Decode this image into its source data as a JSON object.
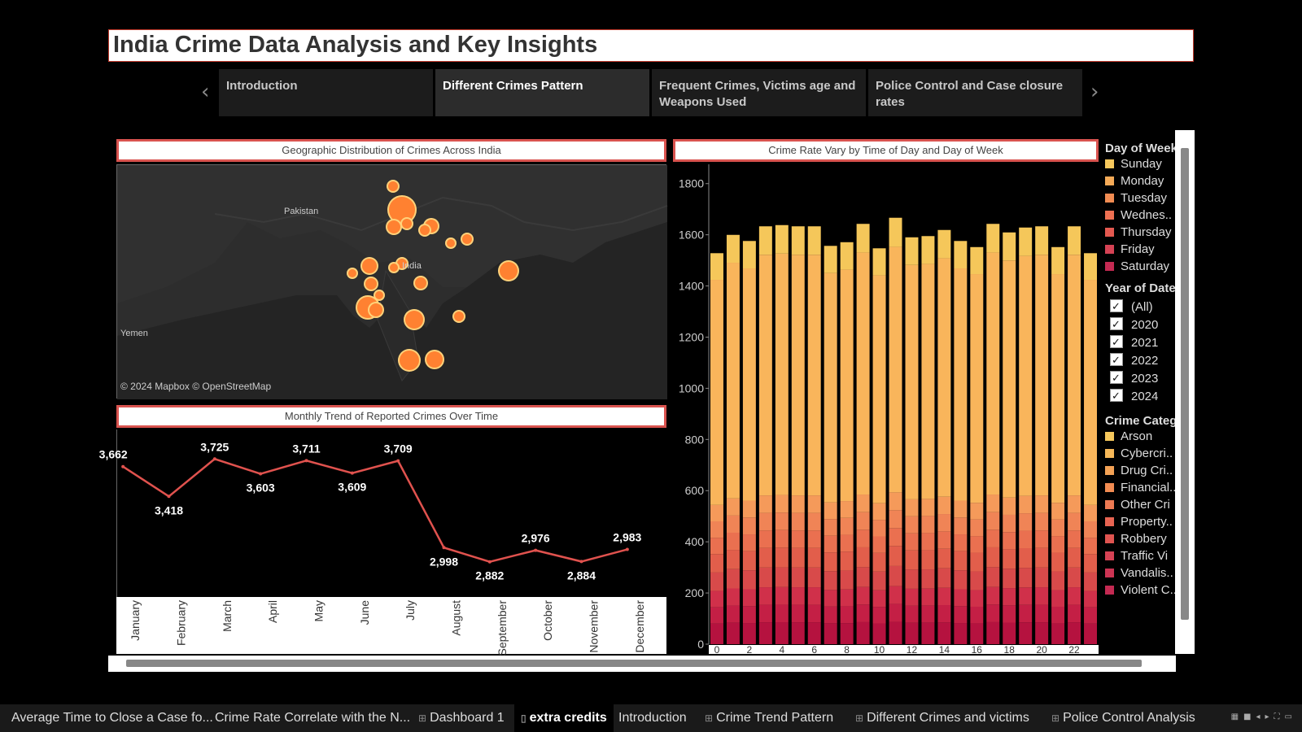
{
  "dashboard_title": "India Crime Data Analysis and Key Insights",
  "story_points": [
    {
      "label": "Introduction"
    },
    {
      "label": "Different Crimes Pattern",
      "active": true
    },
    {
      "label": "Frequent Crimes, Victims age and Weapons Used"
    },
    {
      "label": "Police Control and Case closure rates"
    }
  ],
  "map": {
    "title": "Geographic Distribution of Crimes Across India",
    "labels": {
      "pakistan": "Pakistan",
      "india": "India",
      "yemen": "Yemen"
    },
    "attribution": "© 2024 Mapbox © OpenStreetMap",
    "bubble_color": "#ff7a2a"
  },
  "monthly": {
    "title": "Monthly Trend of Reported Crimes Over Time",
    "line_color": "#e0524e",
    "chart_data": {
      "type": "line",
      "categories": [
        "January",
        "February",
        "March",
        "April",
        "May",
        "June",
        "July",
        "August",
        "September",
        "October",
        "November",
        "December"
      ],
      "values": [
        3662,
        3418,
        3725,
        3603,
        3711,
        3609,
        3709,
        2998,
        2882,
        2976,
        2884,
        2983
      ],
      "labels": [
        "3,662",
        "3,418",
        "3,725",
        "3,603",
        "3,711",
        "3,609",
        "3,709",
        "2,998",
        "2,882",
        "2,976",
        "2,884",
        "2,983"
      ]
    }
  },
  "hourly": {
    "title": "Crime Rate Vary by Time of Day and Day of Week",
    "chart_data": {
      "type": "bar",
      "stacked": true,
      "yticks": [
        "0",
        "200",
        "400",
        "600",
        "800",
        "1000",
        "1200",
        "1400",
        "1600",
        "1800"
      ],
      "ylim": [
        0,
        1850
      ],
      "hours": [
        0,
        1,
        2,
        3,
        4,
        5,
        6,
        7,
        8,
        9,
        10,
        11,
        12,
        13,
        14,
        15,
        16,
        17,
        18,
        19,
        20,
        21,
        22,
        23
      ],
      "x_tick_labels": [
        "0",
        "2",
        "4",
        "6",
        "8",
        "10",
        "12",
        "14",
        "16",
        "18",
        "20",
        "22"
      ],
      "totals": [
        1600,
        1675,
        1650,
        1710,
        1715,
        1710,
        1710,
        1630,
        1645,
        1720,
        1620,
        1745,
        1665,
        1670,
        1695,
        1650,
        1625,
        1720,
        1685,
        1705,
        1710,
        1625,
        1710,
        1600
      ],
      "segment_colors": [
        "#b5123f",
        "#c41f45",
        "#d0304a",
        "#d84a4a",
        "#e25e4b",
        "#ea7050",
        "#f08456",
        "#f59a5a",
        "#f9b55b",
        "#f5c75a"
      ]
    }
  },
  "legends": {
    "day_of_week": {
      "title": "Day of Week",
      "items": [
        {
          "label": "Sunday",
          "color": "#f7c85c"
        },
        {
          "label": "Monday",
          "color": "#f5aa57"
        },
        {
          "label": "Tuesday",
          "color": "#f28c52"
        },
        {
          "label": "Wednes..",
          "color": "#ee7052"
        },
        {
          "label": "Thursday",
          "color": "#e45950"
        },
        {
          "label": "Friday",
          "color": "#d64254"
        },
        {
          "label": "Saturday",
          "color": "#c42a52"
        }
      ]
    },
    "year_of_date": {
      "title": "Year of Date",
      "items": [
        "(All)",
        "2020",
        "2021",
        "2022",
        "2023",
        "2024"
      ]
    },
    "crime_category": {
      "title": "Crime Categ",
      "items": [
        {
          "label": "Arson",
          "color": "#f7c85c"
        },
        {
          "label": "Cybercri..",
          "color": "#f6b858"
        },
        {
          "label": "Drug Cri..",
          "color": "#f4a255"
        },
        {
          "label": "Financial..",
          "color": "#f28c52"
        },
        {
          "label": "Other Cri",
          "color": "#ee7a52"
        },
        {
          "label": "Property..",
          "color": "#e86452"
        },
        {
          "label": "Robbery",
          "color": "#e05450"
        },
        {
          "label": "Traffic Vi",
          "color": "#d64254"
        },
        {
          "label": "Vandalis..",
          "color": "#cc3453"
        },
        {
          "label": "Violent C..",
          "color": "#c42a52"
        }
      ]
    }
  },
  "sheet_tabs": [
    {
      "label": "Average Time to Close a Case fo...",
      "icon": ""
    },
    {
      "label": "Crime Rate Correlate with the N...",
      "icon": ""
    },
    {
      "label": "Dashboard 1",
      "icon": "⊞"
    },
    {
      "label": "extra credits",
      "icon": "▯",
      "active": true
    },
    {
      "label": "Introduction",
      "icon": ""
    },
    {
      "label": "Crime Trend Pattern",
      "icon": "⊞"
    },
    {
      "label": "Different Crimes and victims",
      "icon": "⊞"
    },
    {
      "label": "Police Control Analysis",
      "icon": "⊞"
    }
  ]
}
